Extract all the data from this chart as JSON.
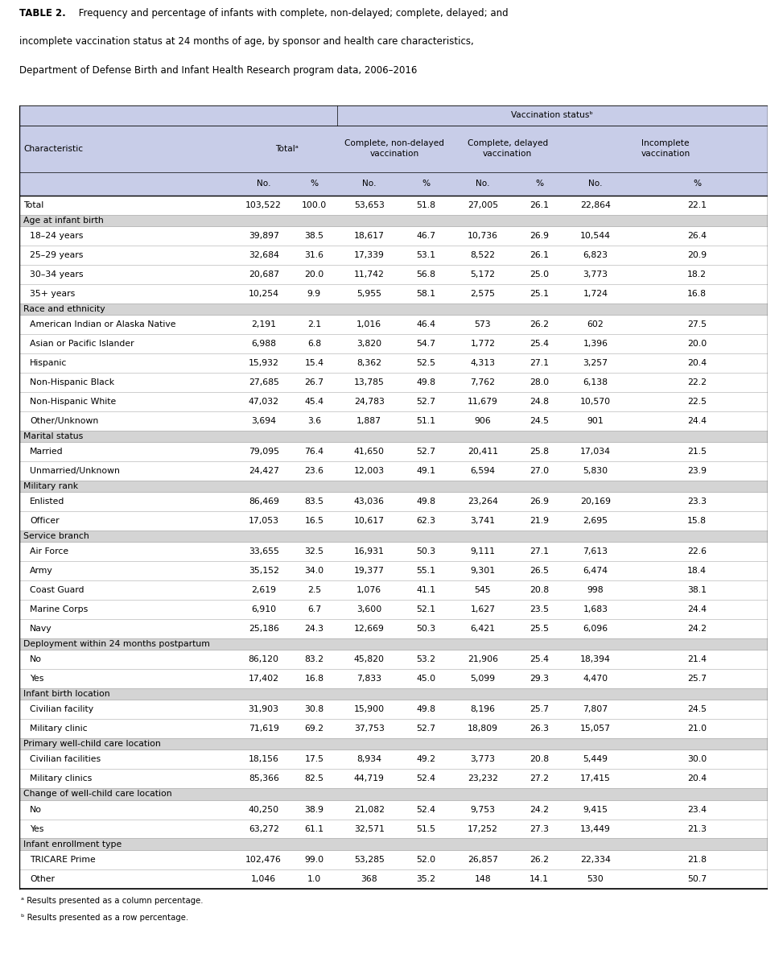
{
  "title_bold": "TABLE 2.",
  "title_rest": " Frequency and percentage of infants with complete, non-delayed; complete, delayed; and incomplete vaccination status at 24 months of age, by sponsor and health care characteristics, Department of Defense Birth and Infant Health Research program data, 2006–2016",
  "footnotes": [
    "ᵃ Results presented as a column percentage.",
    "ᵇ Results presented as a row percentage."
  ],
  "rows": [
    {
      "type": "data",
      "label": "Total",
      "values": [
        "103,522",
        "100.0",
        "53,653",
        "51.8",
        "27,005",
        "26.1",
        "22,864",
        "22.1"
      ],
      "bold": false
    },
    {
      "type": "section",
      "label": "Age at infant birth"
    },
    {
      "type": "data",
      "label": "18–24 years",
      "values": [
        "39,897",
        "38.5",
        "18,617",
        "46.7",
        "10,736",
        "26.9",
        "10,544",
        "26.4"
      ],
      "bold": false
    },
    {
      "type": "data",
      "label": "25–29 years",
      "values": [
        "32,684",
        "31.6",
        "17,339",
        "53.1",
        "8,522",
        "26.1",
        "6,823",
        "20.9"
      ],
      "bold": false
    },
    {
      "type": "data",
      "label": "30–34 years",
      "values": [
        "20,687",
        "20.0",
        "11,742",
        "56.8",
        "5,172",
        "25.0",
        "3,773",
        "18.2"
      ],
      "bold": false
    },
    {
      "type": "data",
      "label": "35+ years",
      "values": [
        "10,254",
        "9.9",
        "5,955",
        "58.1",
        "2,575",
        "25.1",
        "1,724",
        "16.8"
      ],
      "bold": false
    },
    {
      "type": "section",
      "label": "Race and ethnicity"
    },
    {
      "type": "data",
      "label": "American Indian or Alaska Native",
      "values": [
        "2,191",
        "2.1",
        "1,016",
        "46.4",
        "573",
        "26.2",
        "602",
        "27.5"
      ],
      "bold": false
    },
    {
      "type": "data",
      "label": "Asian or Pacific Islander",
      "values": [
        "6,988",
        "6.8",
        "3,820",
        "54.7",
        "1,772",
        "25.4",
        "1,396",
        "20.0"
      ],
      "bold": false
    },
    {
      "type": "data",
      "label": "Hispanic",
      "values": [
        "15,932",
        "15.4",
        "8,362",
        "52.5",
        "4,313",
        "27.1",
        "3,257",
        "20.4"
      ],
      "bold": false
    },
    {
      "type": "data",
      "label": "Non-Hispanic Black",
      "values": [
        "27,685",
        "26.7",
        "13,785",
        "49.8",
        "7,762",
        "28.0",
        "6,138",
        "22.2"
      ],
      "bold": false
    },
    {
      "type": "data",
      "label": "Non-Hispanic White",
      "values": [
        "47,032",
        "45.4",
        "24,783",
        "52.7",
        "11,679",
        "24.8",
        "10,570",
        "22.5"
      ],
      "bold": false
    },
    {
      "type": "data",
      "label": "Other/Unknown",
      "values": [
        "3,694",
        "3.6",
        "1,887",
        "51.1",
        "906",
        "24.5",
        "901",
        "24.4"
      ],
      "bold": false
    },
    {
      "type": "section",
      "label": "Marital status"
    },
    {
      "type": "data",
      "label": "Married",
      "values": [
        "79,095",
        "76.4",
        "41,650",
        "52.7",
        "20,411",
        "25.8",
        "17,034",
        "21.5"
      ],
      "bold": false
    },
    {
      "type": "data",
      "label": "Unmarried/Unknown",
      "values": [
        "24,427",
        "23.6",
        "12,003",
        "49.1",
        "6,594",
        "27.0",
        "5,830",
        "23.9"
      ],
      "bold": false
    },
    {
      "type": "section",
      "label": "Military rank"
    },
    {
      "type": "data",
      "label": "Enlisted",
      "values": [
        "86,469",
        "83.5",
        "43,036",
        "49.8",
        "23,264",
        "26.9",
        "20,169",
        "23.3"
      ],
      "bold": false
    },
    {
      "type": "data",
      "label": "Officer",
      "values": [
        "17,053",
        "16.5",
        "10,617",
        "62.3",
        "3,741",
        "21.9",
        "2,695",
        "15.8"
      ],
      "bold": false
    },
    {
      "type": "section",
      "label": "Service branch"
    },
    {
      "type": "data",
      "label": "Air Force",
      "values": [
        "33,655",
        "32.5",
        "16,931",
        "50.3",
        "9,111",
        "27.1",
        "7,613",
        "22.6"
      ],
      "bold": false
    },
    {
      "type": "data",
      "label": "Army",
      "values": [
        "35,152",
        "34.0",
        "19,377",
        "55.1",
        "9,301",
        "26.5",
        "6,474",
        "18.4"
      ],
      "bold": false
    },
    {
      "type": "data",
      "label": "Coast Guard",
      "values": [
        "2,619",
        "2.5",
        "1,076",
        "41.1",
        "545",
        "20.8",
        "998",
        "38.1"
      ],
      "bold": false
    },
    {
      "type": "data",
      "label": "Marine Corps",
      "values": [
        "6,910",
        "6.7",
        "3,600",
        "52.1",
        "1,627",
        "23.5",
        "1,683",
        "24.4"
      ],
      "bold": false
    },
    {
      "type": "data",
      "label": "Navy",
      "values": [
        "25,186",
        "24.3",
        "12,669",
        "50.3",
        "6,421",
        "25.5",
        "6,096",
        "24.2"
      ],
      "bold": false
    },
    {
      "type": "section",
      "label": "Deployment within 24 months postpartum"
    },
    {
      "type": "data",
      "label": "No",
      "values": [
        "86,120",
        "83.2",
        "45,820",
        "53.2",
        "21,906",
        "25.4",
        "18,394",
        "21.4"
      ],
      "bold": false
    },
    {
      "type": "data",
      "label": "Yes",
      "values": [
        "17,402",
        "16.8",
        "7,833",
        "45.0",
        "5,099",
        "29.3",
        "4,470",
        "25.7"
      ],
      "bold": false
    },
    {
      "type": "section",
      "label": "Infant birth location"
    },
    {
      "type": "data",
      "label": "Civilian facility",
      "values": [
        "31,903",
        "30.8",
        "15,900",
        "49.8",
        "8,196",
        "25.7",
        "7,807",
        "24.5"
      ],
      "bold": false
    },
    {
      "type": "data",
      "label": "Military clinic",
      "values": [
        "71,619",
        "69.2",
        "37,753",
        "52.7",
        "18,809",
        "26.3",
        "15,057",
        "21.0"
      ],
      "bold": false
    },
    {
      "type": "section",
      "label": "Primary well-child care location"
    },
    {
      "type": "data",
      "label": "Civilian facilities",
      "values": [
        "18,156",
        "17.5",
        "8,934",
        "49.2",
        "3,773",
        "20.8",
        "5,449",
        "30.0"
      ],
      "bold": false
    },
    {
      "type": "data",
      "label": "Military clinics",
      "values": [
        "85,366",
        "82.5",
        "44,719",
        "52.4",
        "23,232",
        "27.2",
        "17,415",
        "20.4"
      ],
      "bold": false
    },
    {
      "type": "section",
      "label": "Change of well-child care location"
    },
    {
      "type": "data",
      "label": "No",
      "values": [
        "40,250",
        "38.9",
        "21,082",
        "52.4",
        "9,753",
        "24.2",
        "9,415",
        "23.4"
      ],
      "bold": false
    },
    {
      "type": "data",
      "label": "Yes",
      "values": [
        "63,272",
        "61.1",
        "32,571",
        "51.5",
        "17,252",
        "27.3",
        "13,449",
        "21.3"
      ],
      "bold": false
    },
    {
      "type": "section",
      "label": "Infant enrollment type"
    },
    {
      "type": "data",
      "label": "TRICARE Prime",
      "values": [
        "102,476",
        "99.0",
        "53,285",
        "52.0",
        "26,857",
        "26.2",
        "22,334",
        "21.8"
      ],
      "bold": false
    },
    {
      "type": "data",
      "label": "Other",
      "values": [
        "1,046",
        "1.0",
        "368",
        "35.2",
        "148",
        "14.1",
        "530",
        "50.7"
      ],
      "bold": false
    }
  ],
  "section_bg": "#d4d4d4",
  "header_bg": "#c8cde8",
  "white_bg": "#ffffff",
  "data_indent": 0.012
}
